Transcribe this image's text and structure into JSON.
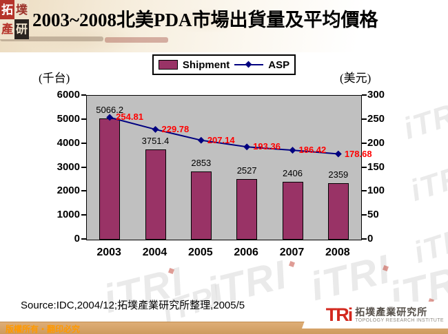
{
  "header": {
    "title": "2003~2008北美PDA市場出貨量及平均價格",
    "seal": [
      {
        "char": "拓",
        "fg": "#ffffff",
        "bg": "#b5342a"
      },
      {
        "char": "墣",
        "fg": "#9b3028",
        "bg": "#efe3cd"
      },
      {
        "char": "產",
        "fg": "#b5342a",
        "bg": "#efe3cd"
      },
      {
        "char": "研",
        "fg": "#efe3cd",
        "bg": "#2a2420"
      }
    ]
  },
  "chart_data": {
    "type": "bar",
    "title": "2003~2008北美PDA市場出貨量及平均價格",
    "categories": [
      "2003",
      "2004",
      "2005",
      "2006",
      "2007",
      "2008"
    ],
    "series": [
      {
        "name": "Shipment",
        "type": "bar",
        "axis": "left",
        "color": "#993366",
        "values": [
          5066.2,
          3751.4,
          2853,
          2527,
          2406,
          2359
        ]
      },
      {
        "name": "ASP",
        "type": "line",
        "axis": "right",
        "color": "#000080",
        "marker": "diamond",
        "label_color": "#FF0000",
        "values": [
          254.81,
          229.78,
          207.14,
          193.36,
          186.42,
          178.68
        ]
      }
    ],
    "left_axis": {
      "label": "(千台)",
      "min": 0,
      "max": 6000,
      "step": 1000
    },
    "right_axis": {
      "label": "(美元)",
      "min": 0,
      "max": 300,
      "step": 50
    },
    "plot_background": "#C0C0C0",
    "grid": false,
    "legend_position": "top-center"
  },
  "footer": {
    "source": "Source:IDC,2004/12;拓墣產業研究所整理,2005/5",
    "copyright": "版權所有‧翻印必究",
    "logo_tri": "TRi",
    "logo_cn": "拓墣產業研究所",
    "logo_en": "TOPOLOGY RESEARCH INSTITUTE"
  },
  "watermark": {
    "text": "iTRI"
  }
}
